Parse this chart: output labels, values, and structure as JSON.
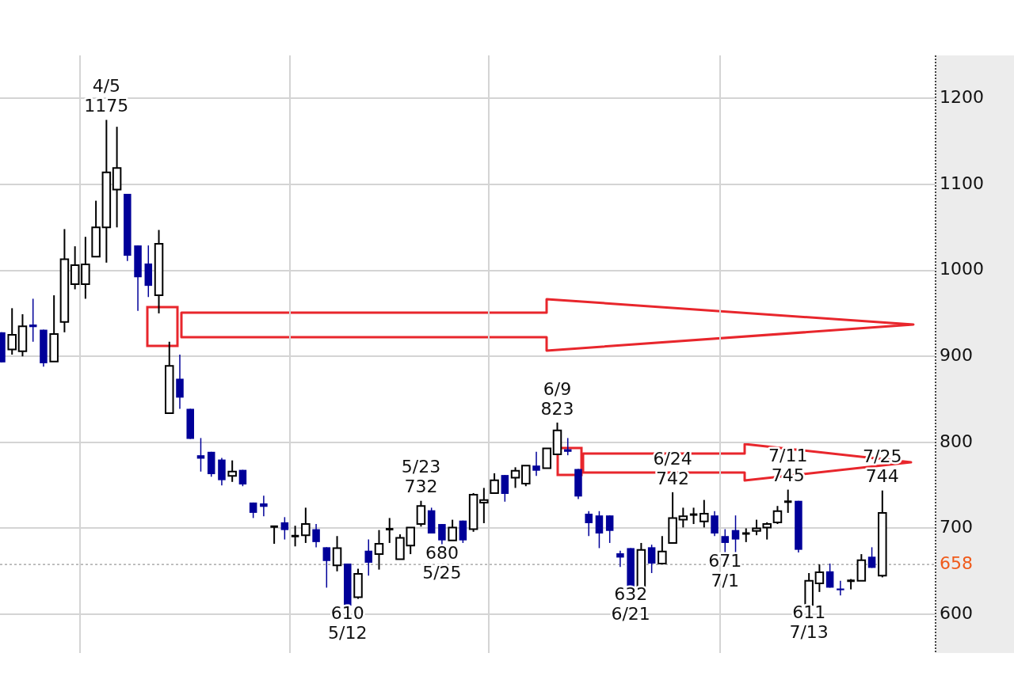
{
  "chart_data": {
    "type": "candlestick",
    "categories": [
      null,
      null,
      null,
      null,
      null,
      null,
      null,
      null,
      null,
      null,
      null,
      null,
      null,
      null,
      null,
      null,
      null,
      null,
      null,
      null,
      null,
      null,
      null,
      null,
      null,
      null,
      null,
      null,
      null,
      null,
      null,
      null,
      null,
      null,
      null,
      null,
      null,
      null,
      null,
      null,
      null,
      null,
      null,
      null,
      null,
      null,
      null,
      null,
      null,
      null,
      null,
      null,
      null,
      null,
      null,
      null,
      null,
      null,
      null,
      null,
      null,
      null,
      null,
      null,
      null,
      null,
      null,
      null,
      null,
      null,
      null,
      null,
      null,
      null,
      null,
      null,
      null,
      null,
      null,
      null,
      null,
      null,
      null,
      null,
      null
    ],
    "ohlc": [
      [
        928,
        928,
        893,
        893
      ],
      [
        908,
        956,
        902,
        925
      ],
      [
        906,
        949,
        900,
        935
      ],
      [
        937,
        967,
        917,
        934
      ],
      [
        931,
        931,
        888,
        892
      ],
      [
        894,
        971,
        894,
        926
      ],
      [
        940,
        1048,
        928,
        1013
      ],
      [
        984,
        1028,
        978,
        1006
      ],
      [
        984,
        1039,
        967,
        1007
      ],
      [
        1016,
        1081,
        1016,
        1050
      ],
      [
        1050,
        1175,
        1009,
        1114
      ],
      [
        1094,
        1167,
        1050,
        1119
      ],
      [
        1089,
        1089,
        1011,
        1017
      ],
      [
        1029,
        1029,
        953,
        992
      ],
      [
        1008,
        1029,
        969,
        982
      ],
      [
        971,
        1047,
        950,
        1031
      ],
      [
        834,
        917,
        833,
        889
      ],
      [
        874,
        902,
        839,
        852
      ],
      [
        839,
        839,
        804,
        804
      ],
      [
        785,
        805,
        766,
        781
      ],
      [
        789,
        789,
        760,
        763
      ],
      [
        780,
        782,
        750,
        756
      ],
      [
        761,
        779,
        754,
        766
      ],
      [
        768,
        768,
        749,
        751
      ],
      [
        730,
        730,
        712,
        718
      ],
      [
        729,
        738,
        714,
        725
      ],
      [
        702,
        702,
        682,
        702
      ],
      [
        707,
        713,
        687,
        698
      ],
      [
        691,
        703,
        679,
        691
      ],
      [
        692,
        724,
        683,
        705
      ],
      [
        699,
        705,
        678,
        684
      ],
      [
        678,
        678,
        631,
        662
      ],
      [
        657,
        691,
        650,
        677
      ],
      [
        659,
        659,
        610,
        610
      ],
      [
        620,
        653,
        618,
        647
      ],
      [
        674,
        687,
        645,
        660
      ],
      [
        670,
        698,
        652,
        682
      ],
      [
        699,
        712,
        683,
        699
      ],
      [
        664,
        693,
        664,
        689
      ],
      [
        680,
        701,
        670,
        701
      ],
      [
        705,
        732,
        702,
        726
      ],
      [
        721,
        724,
        694,
        694
      ],
      [
        705,
        705,
        680,
        686
      ],
      [
        686,
        710,
        686,
        701
      ],
      [
        709,
        709,
        683,
        686
      ],
      [
        699,
        741,
        696,
        739
      ],
      [
        730,
        747,
        706,
        733
      ],
      [
        741,
        764,
        741,
        756
      ],
      [
        762,
        762,
        731,
        740
      ],
      [
        759,
        771,
        747,
        767
      ],
      [
        752,
        773,
        749,
        773
      ],
      [
        773,
        789,
        761,
        767
      ],
      [
        770,
        793,
        770,
        793
      ],
      [
        786,
        823,
        786,
        814
      ],
      [
        792,
        805,
        785,
        789
      ],
      [
        769,
        769,
        734,
        737
      ],
      [
        717,
        720,
        691,
        706
      ],
      [
        715,
        720,
        677,
        694
      ],
      [
        715,
        715,
        683,
        697
      ],
      [
        671,
        674,
        655,
        666
      ],
      [
        677,
        677,
        632,
        632
      ],
      [
        632,
        683,
        632,
        675
      ],
      [
        678,
        681,
        648,
        659
      ],
      [
        659,
        691,
        659,
        673
      ],
      [
        683,
        742,
        683,
        712
      ],
      [
        710,
        724,
        701,
        714
      ],
      [
        716,
        724,
        705,
        716
      ],
      [
        708,
        733,
        701,
        717
      ],
      [
        715,
        720,
        691,
        694
      ],
      [
        691,
        699,
        671,
        683
      ],
      [
        698,
        715,
        672,
        687
      ],
      [
        694,
        700,
        684,
        694
      ],
      [
        697,
        710,
        692,
        700
      ],
      [
        701,
        707,
        687,
        705
      ],
      [
        707,
        726,
        705,
        720
      ],
      [
        731,
        745,
        718,
        731
      ],
      [
        732,
        732,
        672,
        675
      ],
      [
        611,
        648,
        611,
        639
      ],
      [
        636,
        658,
        626,
        649
      ],
      [
        650,
        659,
        631,
        631
      ],
      [
        630,
        639,
        622,
        628
      ],
      [
        639,
        641,
        629,
        639
      ],
      [
        639,
        670,
        639,
        663
      ],
      [
        667,
        678,
        654,
        654
      ],
      [
        645,
        744,
        643,
        718
      ]
    ],
    "ylim": [
      555,
      1250
    ],
    "yticks": [
      600,
      700,
      800,
      900,
      1000,
      1100,
      1200
    ],
    "grid": true,
    "legend": false,
    "ref_lines": [
      {
        "axis": "y",
        "value": 658,
        "label": "658",
        "color": "#808080",
        "line_style": "dashed"
      }
    ],
    "annotations": [
      {
        "text": "4/5\n1175",
        "y": 1175
      },
      {
        "text": "610\n5/12",
        "y": 610
      },
      {
        "text": "5/23\n732",
        "y": 732
      },
      {
        "text": "680\n5/25",
        "y": 680
      },
      {
        "text": "6/9\n823",
        "y": 823
      },
      {
        "text": "632\n6/21",
        "y": 632
      },
      {
        "text": "6/24\n742",
        "y": 742
      },
      {
        "text": "671\n7/1",
        "y": 671
      },
      {
        "text": "7/11\n745",
        "y": 745
      },
      {
        "text": "611\n7/13",
        "y": 611
      },
      {
        "text": "7/25\n744",
        "y": 744
      }
    ]
  }
}
